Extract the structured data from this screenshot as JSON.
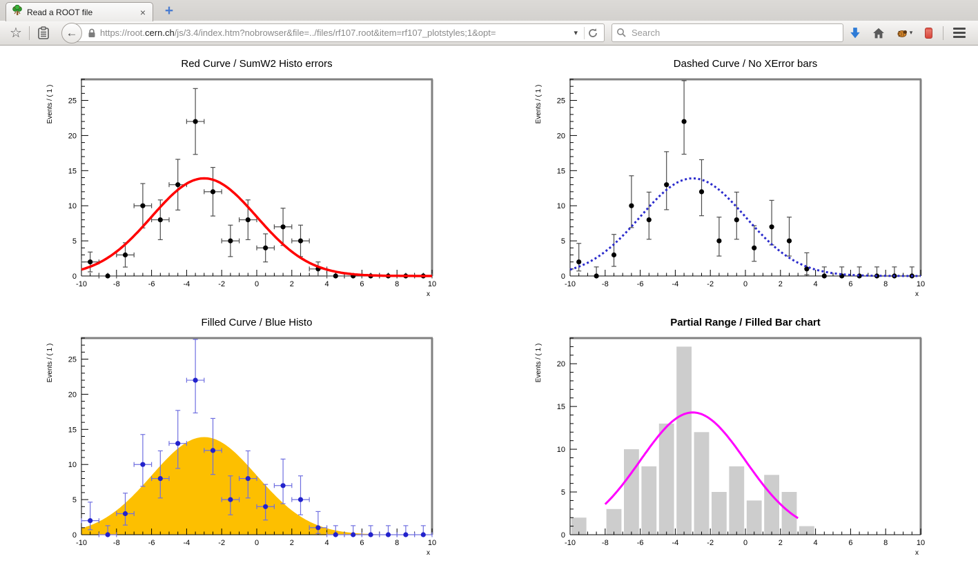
{
  "browser": {
    "tab": {
      "title": "Read a ROOT file"
    },
    "glyphs": {
      "star": "☆",
      "caret": "▾",
      "close": "×",
      "new_tab": "+",
      "back": "←"
    },
    "toolbar": {
      "url_prefix": "https://root.",
      "url_domain": "cern.ch",
      "url_path": "/js/3.4/index.htm?nobrowser&file=../files/rf107.root&item=rf107_plotstyles;1&opt=",
      "search_placeholder": "Search"
    }
  },
  "chart_data": [
    {
      "id": "red-sumw2",
      "type": "scatter",
      "title": "Red Curve / SumW2 Histo errors",
      "title_bold": false,
      "xlabel": "x",
      "ylabel": "Events / ( 1 )",
      "xlim": [
        -10,
        10
      ],
      "ylim": [
        0,
        28
      ],
      "x_tick_labels": [
        -10,
        -8,
        -6,
        -4,
        -2,
        0,
        2,
        4,
        6,
        8,
        10
      ],
      "y_tick_labels": [
        0,
        5,
        10,
        15,
        20,
        25
      ],
      "x_major_step": 2,
      "x_minor_step": 0.5,
      "y_major_step": 5,
      "y_minor_step": 1,
      "bin_centers": [
        -9.5,
        -8.5,
        -7.5,
        -6.5,
        -5.5,
        -4.5,
        -3.5,
        -2.5,
        -1.5,
        -0.5,
        0.5,
        1.5,
        2.5,
        3.5,
        4.5,
        5.5,
        6.5,
        7.5,
        8.5,
        9.5
      ],
      "values": [
        2,
        0,
        3,
        10,
        8,
        13,
        22,
        12,
        5,
        8,
        4,
        7,
        5,
        1,
        0,
        0,
        0,
        0,
        0,
        0
      ],
      "error_low": [
        1.41,
        0,
        1.73,
        3.16,
        2.83,
        3.61,
        4.69,
        3.46,
        2.24,
        2.83,
        2,
        2.65,
        2.24,
        1,
        0,
        0,
        0,
        0,
        0,
        0
      ],
      "error_high": [
        1.41,
        0,
        1.73,
        3.16,
        2.83,
        3.61,
        4.69,
        3.46,
        2.24,
        2.83,
        2,
        2.65,
        2.24,
        1,
        0,
        0,
        0,
        0,
        0,
        0
      ],
      "x_errors": true,
      "marker_color": "#000000",
      "errorbar_color": "#4d4d4d",
      "curve": {
        "style": "solid",
        "color": "#ff0000",
        "width": 3.5,
        "amplitude": 13.9,
        "mean": -3,
        "sigma": 3,
        "range": [
          -10,
          10
        ]
      }
    },
    {
      "id": "dashed-noxerr",
      "type": "scatter",
      "title": "Dashed Curve / No XError bars",
      "title_bold": false,
      "xlabel": "x",
      "ylabel": "Events / ( 1 )",
      "xlim": [
        -10,
        10
      ],
      "ylim": [
        0,
        28
      ],
      "x_tick_labels": [
        -10,
        -8,
        -6,
        -4,
        -2,
        0,
        2,
        4,
        6,
        8,
        10
      ],
      "y_tick_labels": [
        0,
        5,
        10,
        15,
        20,
        25
      ],
      "x_major_step": 2,
      "x_minor_step": 0.5,
      "y_major_step": 5,
      "y_minor_step": 1,
      "bin_centers": [
        -9.5,
        -8.5,
        -7.5,
        -6.5,
        -5.5,
        -4.5,
        -3.5,
        -2.5,
        -1.5,
        -0.5,
        0.5,
        1.5,
        2.5,
        3.5,
        4.5,
        5.5,
        6.5,
        7.5,
        8.5,
        9.5
      ],
      "values": [
        2,
        0,
        3,
        10,
        8,
        13,
        22,
        12,
        5,
        8,
        4,
        7,
        5,
        1,
        0,
        0,
        0,
        0,
        0,
        0
      ],
      "error_low": [
        1.29,
        0,
        1.63,
        3.11,
        2.77,
        3.56,
        4.66,
        3.42,
        2.16,
        2.77,
        1.91,
        2.58,
        2.16,
        0.83,
        0,
        0,
        0,
        0,
        0,
        0
      ],
      "error_high": [
        2.64,
        1.29,
        2.92,
        4.27,
        3.94,
        4.7,
        5.81,
        4.56,
        3.38,
        3.94,
        3.16,
        3.77,
        3.38,
        2.3,
        1.29,
        1.29,
        1.29,
        1.29,
        1.29,
        1.29
      ],
      "x_errors": false,
      "marker_color": "#000000",
      "errorbar_color": "#4d4d4d",
      "curve": {
        "style": "dotted",
        "color": "#2b2bcc",
        "width": 3,
        "amplitude": 13.9,
        "mean": -3,
        "sigma": 3,
        "range": [
          -10,
          10
        ]
      }
    },
    {
      "id": "filled-blue",
      "type": "scatter",
      "title": "Filled Curve / Blue Histo",
      "title_bold": false,
      "xlabel": "x",
      "ylabel": "Events / ( 1 )",
      "xlim": [
        -10,
        10
      ],
      "ylim": [
        0,
        28
      ],
      "x_tick_labels": [
        -10,
        -8,
        -6,
        -4,
        -2,
        0,
        2,
        4,
        6,
        8,
        10
      ],
      "y_tick_labels": [
        0,
        5,
        10,
        15,
        20,
        25
      ],
      "x_major_step": 2,
      "x_minor_step": 0.5,
      "y_major_step": 5,
      "y_minor_step": 1,
      "bin_centers": [
        -9.5,
        -8.5,
        -7.5,
        -6.5,
        -5.5,
        -4.5,
        -3.5,
        -2.5,
        -1.5,
        -0.5,
        0.5,
        1.5,
        2.5,
        3.5,
        4.5,
        5.5,
        6.5,
        7.5,
        8.5,
        9.5
      ],
      "values": [
        2,
        0,
        3,
        10,
        8,
        13,
        22,
        12,
        5,
        8,
        4,
        7,
        5,
        1,
        0,
        0,
        0,
        0,
        0,
        0
      ],
      "error_low": [
        1.29,
        0,
        1.63,
        3.11,
        2.77,
        3.56,
        4.66,
        3.42,
        2.16,
        2.77,
        1.91,
        2.58,
        2.16,
        0.83,
        0,
        0,
        0,
        0,
        0,
        0
      ],
      "error_high": [
        2.64,
        1.29,
        2.92,
        4.27,
        3.94,
        4.7,
        5.81,
        4.56,
        3.38,
        3.94,
        3.16,
        3.77,
        3.38,
        2.3,
        1.29,
        1.29,
        1.29,
        1.29,
        1.29,
        1.29
      ],
      "x_errors": true,
      "marker_color": "#2222cc",
      "errorbar_color": "#6f6fe0",
      "curve": {
        "style": "fill",
        "color": "#fdbf00",
        "width": 1,
        "amplitude": 13.9,
        "mean": -3,
        "sigma": 3,
        "range": [
          -10,
          10
        ]
      }
    },
    {
      "id": "partial-bar",
      "type": "bar",
      "title": "Partial Range / Filled Bar chart",
      "title_bold": true,
      "xlabel": "x",
      "ylabel": "Events / ( 1 )",
      "xlim": [
        -10,
        10
      ],
      "ylim": [
        0,
        23
      ],
      "x_tick_labels": [
        -10,
        -8,
        -6,
        -4,
        -2,
        0,
        2,
        4,
        6,
        8,
        10
      ],
      "y_tick_labels": [
        0,
        5,
        10,
        15,
        20
      ],
      "x_major_step": 2,
      "x_minor_step": 0.5,
      "y_major_step": 5,
      "y_minor_step": 1,
      "bin_centers": [
        -9.5,
        -8.5,
        -7.5,
        -6.5,
        -5.5,
        -4.5,
        -3.5,
        -2.5,
        -1.5,
        -0.5,
        0.5,
        1.5,
        2.5,
        3.5,
        4.5,
        5.5,
        6.5,
        7.5,
        8.5,
        9.5
      ],
      "values": [
        2,
        0,
        3,
        10,
        8,
        13,
        22,
        12,
        5,
        8,
        4,
        7,
        5,
        1,
        0,
        0,
        0,
        0,
        0,
        0
      ],
      "bars": {
        "color": "#cdcdcd",
        "width_frac": 0.86
      },
      "curve": {
        "style": "solid",
        "color": "#ff00ff",
        "width": 3,
        "amplitude": 14.3,
        "mean": -3,
        "sigma": 3,
        "range": [
          -8,
          3
        ]
      }
    }
  ]
}
